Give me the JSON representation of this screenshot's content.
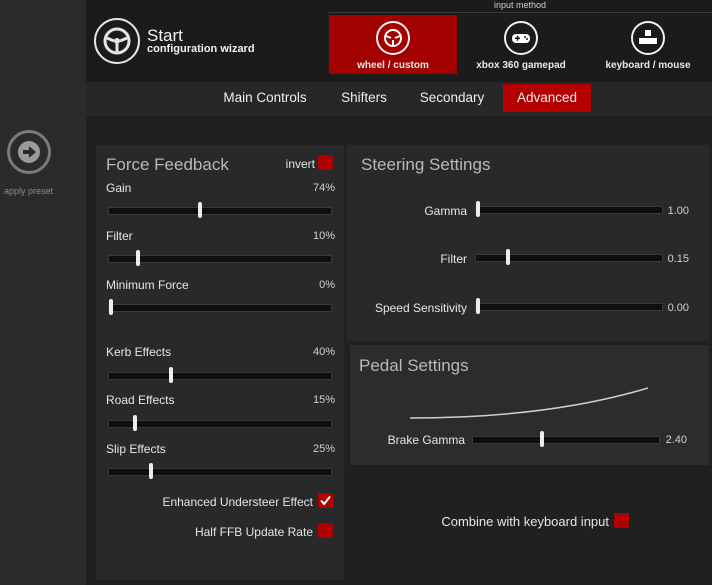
{
  "header": {
    "title": "Start",
    "subtitle": "configuration wizard",
    "input_method_label": "input method",
    "input_methods": [
      {
        "label": "wheel / custom",
        "selected": true
      },
      {
        "label": "xbox 360 gamepad",
        "selected": false
      },
      {
        "label": "keyboard / mouse",
        "selected": false
      }
    ]
  },
  "left": {
    "apply_preset_label": "apply preset"
  },
  "tabs": [
    {
      "label": "Main Controls",
      "selected": false
    },
    {
      "label": "Shifters",
      "selected": false
    },
    {
      "label": "Secondary",
      "selected": false
    },
    {
      "label": "Advanced",
      "selected": true
    }
  ],
  "force_feedback": {
    "title": "Force Feedback",
    "invert_label": "invert",
    "invert_checked": false,
    "sliders": [
      {
        "label": "Gain",
        "value": "74%",
        "fraction": 0.4
      },
      {
        "label": "Filter",
        "value": "10%",
        "fraction": 0.12
      },
      {
        "label": "Minimum Force",
        "value": "0%",
        "fraction": 0.0
      },
      {
        "label": "Kerb Effects",
        "value": "40%",
        "fraction": 0.27
      },
      {
        "label": "Road Effects",
        "value": "15%",
        "fraction": 0.11
      },
      {
        "label": "Slip Effects",
        "value": "25%",
        "fraction": 0.18
      }
    ],
    "enhanced_understeer_label": "Enhanced Understeer Effect",
    "enhanced_understeer_checked": true,
    "half_ffb_label": "Half FFB Update Rate",
    "half_ffb_checked": false
  },
  "steering": {
    "title": "Steering Settings",
    "sliders": [
      {
        "label": "Gamma",
        "value": "1.00",
        "fraction": 0.0
      },
      {
        "label": "Filter",
        "value": "0.15",
        "fraction": 0.16
      },
      {
        "label": "Speed Sensitivity",
        "value": "0.00",
        "fraction": 0.0
      }
    ]
  },
  "pedal": {
    "title": "Pedal Settings",
    "brake_gamma_label": "Brake Gamma",
    "brake_gamma_value": "2.40",
    "brake_gamma_fraction": 0.36
  },
  "combine_keyboard_label": "Combine with keyboard input",
  "combine_keyboard_checked": false,
  "colors": {
    "accent_red": "#b00000",
    "selected_input_bg": "#a30000",
    "background": "#1f2022",
    "panel": "#27292b"
  }
}
